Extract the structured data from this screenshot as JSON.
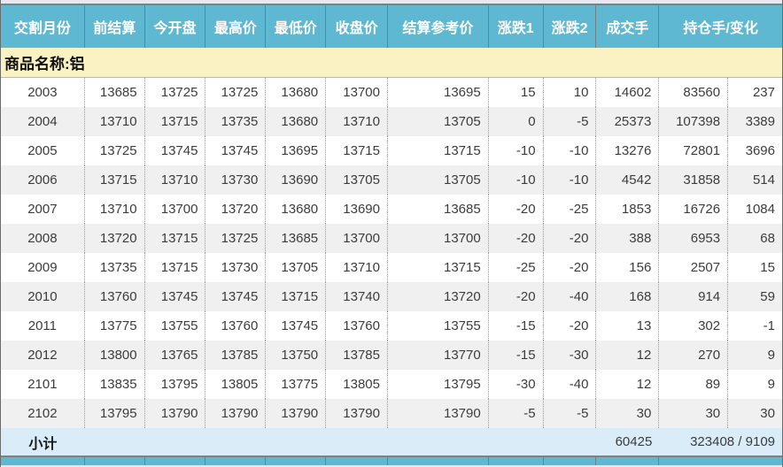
{
  "table": {
    "columns": [
      {
        "id": "delivery-month",
        "label": "交割月份"
      },
      {
        "id": "prev-settlement",
        "label": "前结算"
      },
      {
        "id": "open",
        "label": "今开盘"
      },
      {
        "id": "high",
        "label": "最高价"
      },
      {
        "id": "low",
        "label": "最低价"
      },
      {
        "id": "close",
        "label": "收盘价"
      },
      {
        "id": "settlement-ref",
        "label": "结算参考价"
      },
      {
        "id": "change1",
        "label": "涨跌1"
      },
      {
        "id": "change2",
        "label": "涨跌2"
      },
      {
        "id": "volume",
        "label": "成交手"
      },
      {
        "id": "open-interest-change",
        "label": "持仓手/变化"
      }
    ],
    "group_label": "商品名称:铝",
    "rows": [
      [
        "2003",
        "13685",
        "13725",
        "13725",
        "13680",
        "13700",
        "13695",
        "15",
        "10",
        "14602",
        "83560",
        "237"
      ],
      [
        "2004",
        "13710",
        "13715",
        "13735",
        "13680",
        "13710",
        "13705",
        "0",
        "-5",
        "25373",
        "107398",
        "3389"
      ],
      [
        "2005",
        "13725",
        "13745",
        "13745",
        "13695",
        "13715",
        "13715",
        "-10",
        "-10",
        "13276",
        "72801",
        "3696"
      ],
      [
        "2006",
        "13715",
        "13710",
        "13730",
        "13690",
        "13705",
        "13705",
        "-10",
        "-10",
        "4542",
        "31858",
        "514"
      ],
      [
        "2007",
        "13710",
        "13700",
        "13720",
        "13680",
        "13690",
        "13685",
        "-20",
        "-25",
        "1853",
        "16726",
        "1084"
      ],
      [
        "2008",
        "13720",
        "13715",
        "13725",
        "13685",
        "13700",
        "13700",
        "-20",
        "-20",
        "388",
        "6953",
        "68"
      ],
      [
        "2009",
        "13735",
        "13715",
        "13730",
        "13705",
        "13710",
        "13715",
        "-25",
        "-20",
        "156",
        "2507",
        "15"
      ],
      [
        "2010",
        "13760",
        "13745",
        "13745",
        "13715",
        "13740",
        "13720",
        "-20",
        "-40",
        "168",
        "914",
        "59"
      ],
      [
        "2011",
        "13775",
        "13755",
        "13760",
        "13745",
        "13760",
        "13755",
        "-15",
        "-20",
        "13",
        "302",
        "-1"
      ],
      [
        "2012",
        "13800",
        "13765",
        "13785",
        "13750",
        "13785",
        "13770",
        "-15",
        "-30",
        "12",
        "270",
        "9"
      ],
      [
        "2101",
        "13835",
        "13795",
        "13805",
        "13775",
        "13805",
        "13795",
        "-30",
        "-40",
        "12",
        "89",
        "9"
      ],
      [
        "2102",
        "13795",
        "13790",
        "13790",
        "13790",
        "13790",
        "13790",
        "-5",
        "-5",
        "30",
        "30",
        "30"
      ]
    ],
    "subtotal": {
      "label": "小计",
      "volume_total": "60425",
      "oi_total": "323408 / 9109"
    }
  },
  "colors": {
    "header_bg": "#5FB8D2",
    "header_text": "#FFFFFF",
    "group_row_bg": "#FBF2C3",
    "row_bg": "#FFFFFF",
    "row_alt_bg": "#F0F0F0",
    "subtotal_bg": "#D9ECF7",
    "separator": "#808080",
    "data_text": "#3C3C3C"
  }
}
